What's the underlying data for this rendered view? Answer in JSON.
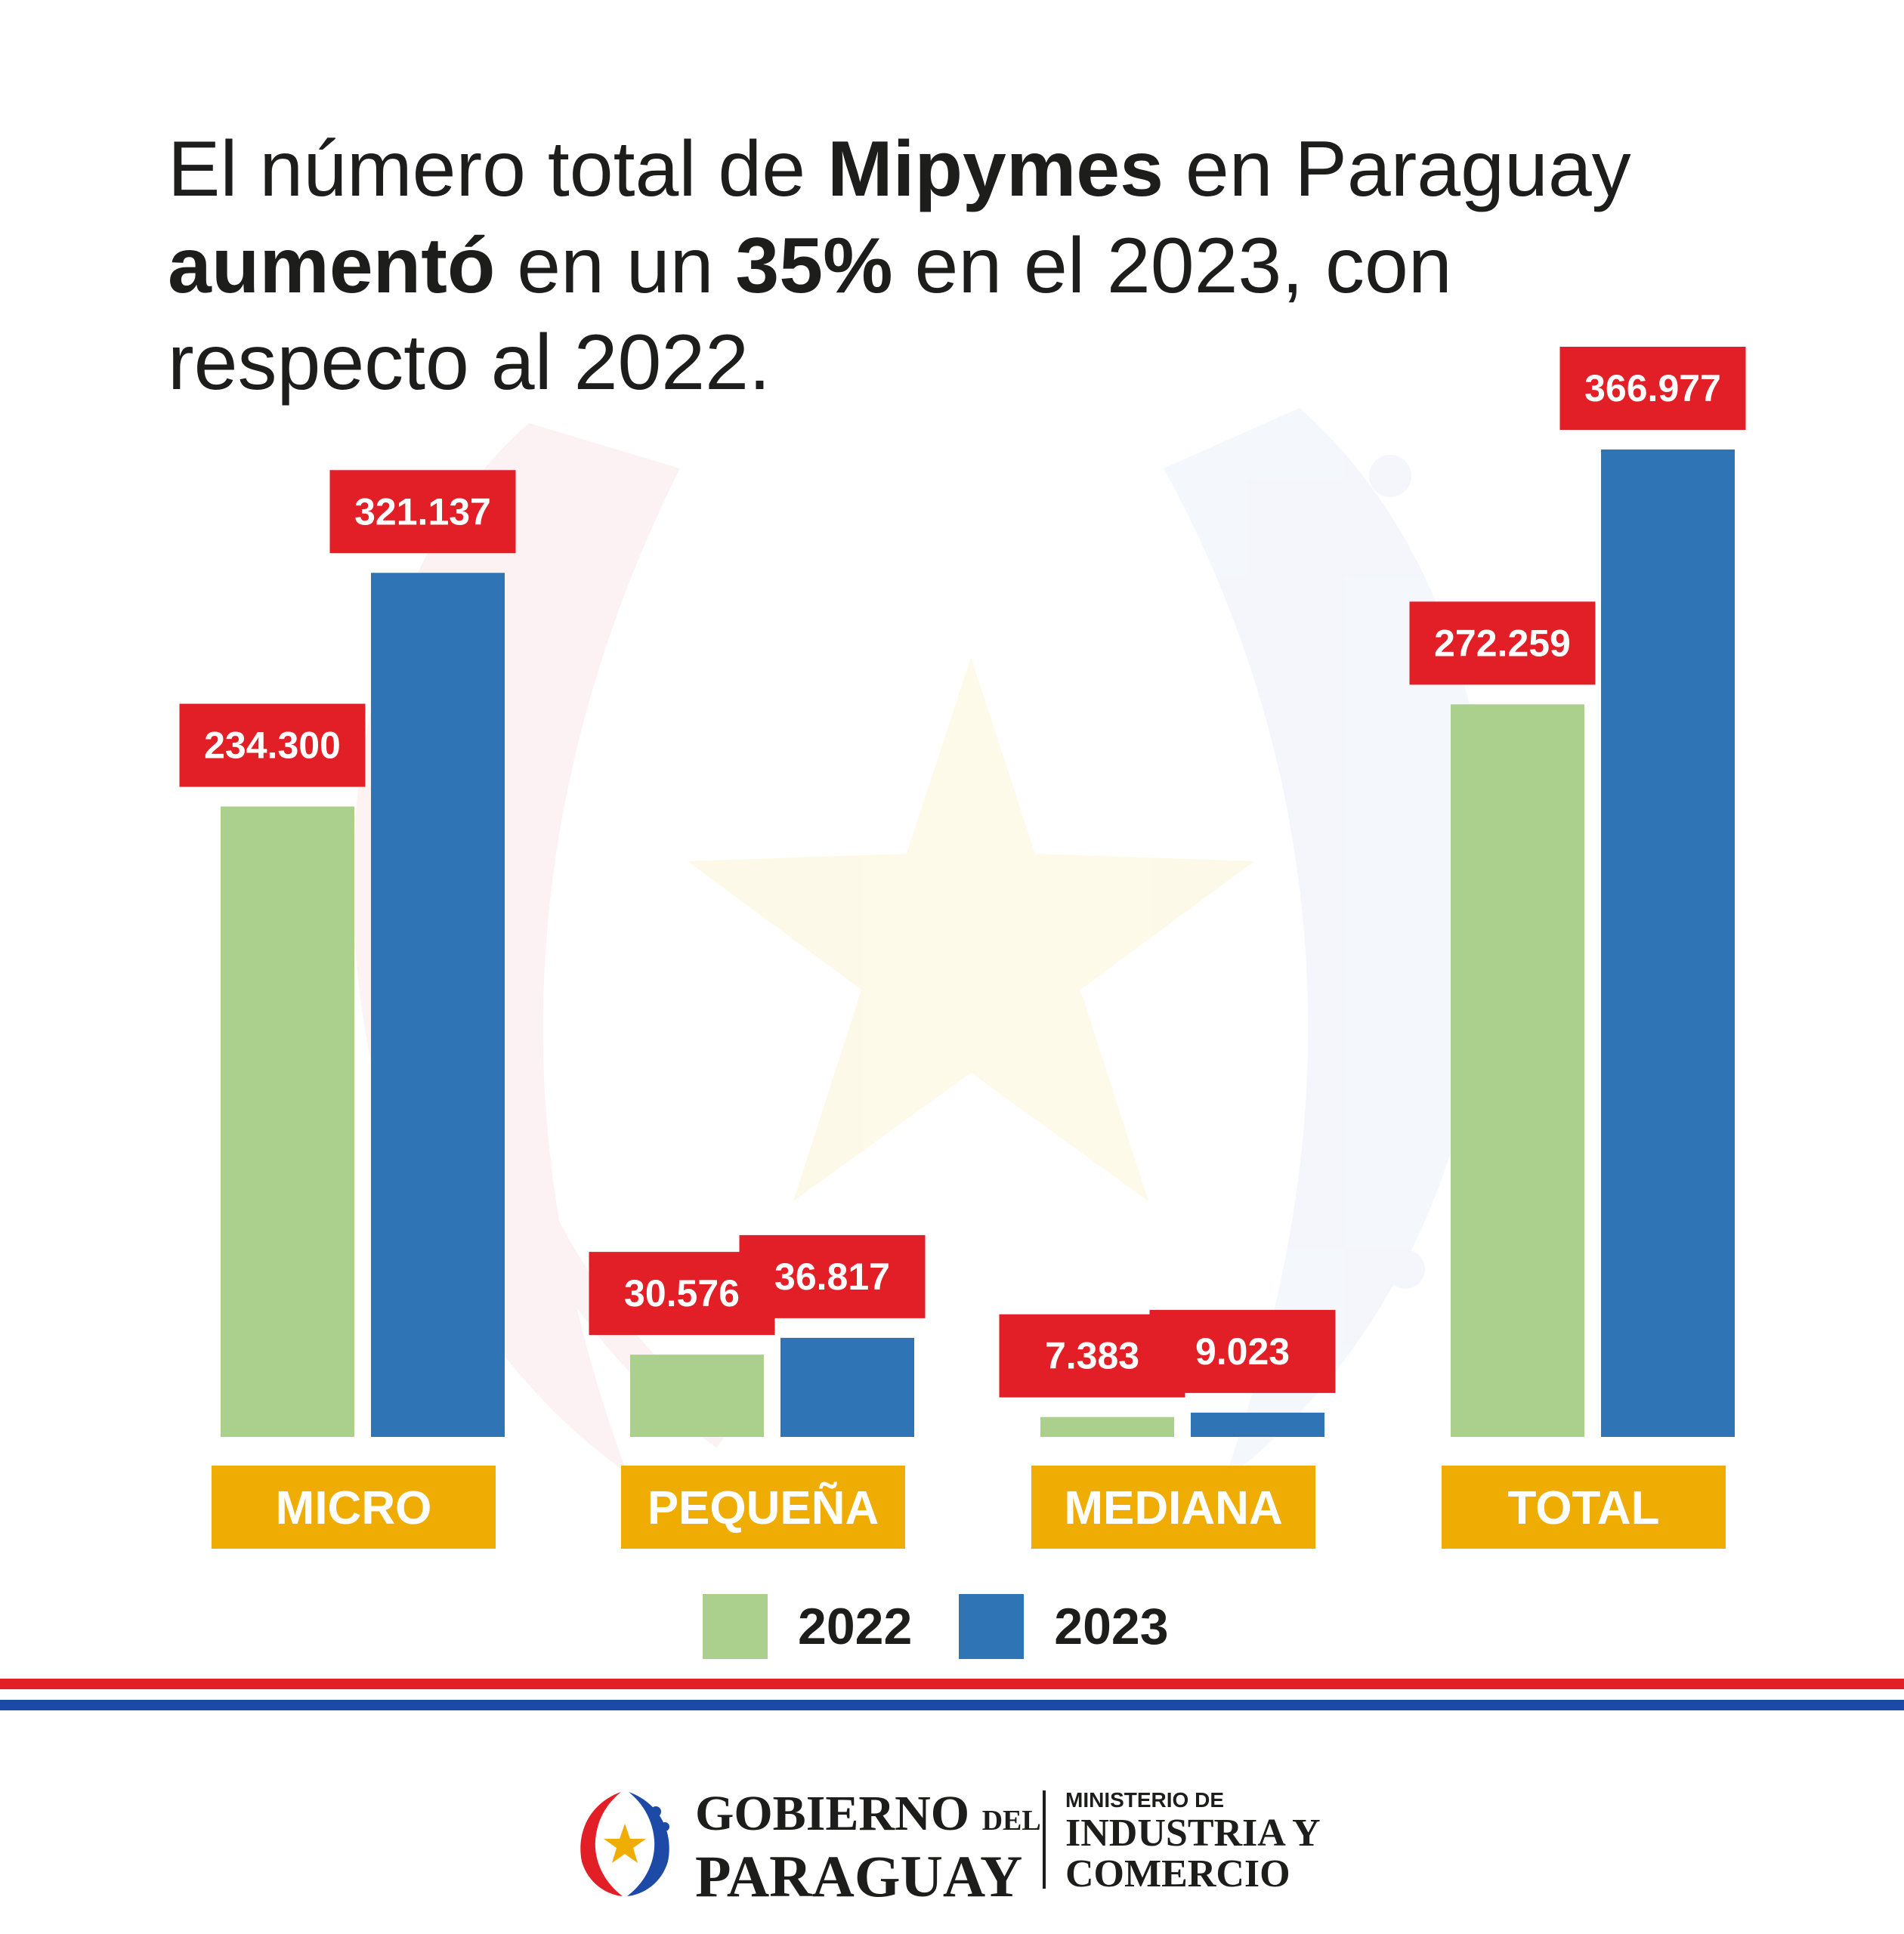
{
  "headline": {
    "part1": "El número total de ",
    "bold1": "Mipymes",
    "part2": " en Paraguay ",
    "bold2": "aumentó",
    "part3": " en un ",
    "bold3": "35%",
    "part4": " en el 2023, con respecto al 2022."
  },
  "colors": {
    "series_2022": "#abd08d",
    "series_2023": "#2f74b5",
    "value_label_bg": "#e21f26",
    "category_bg": "#efac03",
    "flag_red": "#e21f26",
    "flag_blue": "#1d4aa7"
  },
  "chart_data": {
    "type": "bar",
    "categories": [
      "MICRO",
      "PEQUEÑA",
      "MEDIANA",
      "TOTAL"
    ],
    "series": [
      {
        "name": "2022",
        "values": [
          234300,
          30576,
          7383,
          272259
        ],
        "labels": [
          "234.300",
          "30.576",
          "7.383",
          "272.259"
        ]
      },
      {
        "name": "2023",
        "values": [
          321137,
          36817,
          9023,
          366977
        ],
        "labels": [
          "321.137",
          "36.817",
          "9.023",
          "366.977"
        ]
      }
    ],
    "legend": [
      "2022",
      "2023"
    ],
    "legend_position": "bottom",
    "grid": false
  },
  "footer": {
    "gov_line1": "GOBIERNO",
    "gov_del": "DEL",
    "gov_line2": "PARAGUAY",
    "ministry_line1": "MINISTERIO DE",
    "ministry_line2": "INDUSTRIA Y",
    "ministry_line3": "COMERCIO",
    "seal_icon": "paraguay-seal-icon"
  }
}
